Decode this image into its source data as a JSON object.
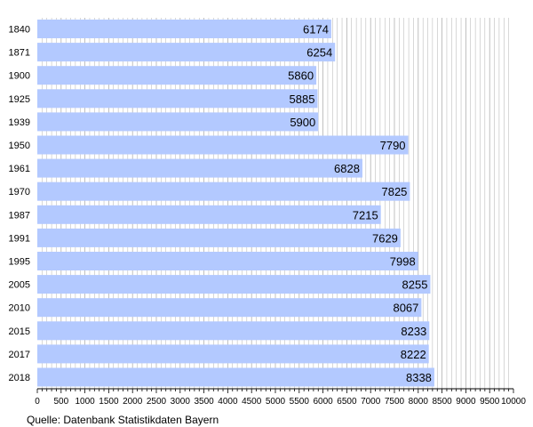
{
  "chart_data": {
    "type": "bar",
    "orientation": "horizontal",
    "categories": [
      "1840",
      "1871",
      "1900",
      "1925",
      "1939",
      "1950",
      "1961",
      "1970",
      "1987",
      "1991",
      "1995",
      "2005",
      "2010",
      "2015",
      "2017",
      "2018"
    ],
    "values": [
      6174,
      6254,
      5860,
      5885,
      5900,
      7790,
      6828,
      7825,
      7215,
      7629,
      7998,
      8255,
      8067,
      8233,
      8222,
      8338
    ],
    "xlim": [
      0,
      10000
    ],
    "x_ticks": [
      0,
      500,
      1000,
      1500,
      2000,
      2500,
      3000,
      3500,
      4000,
      4500,
      5000,
      5500,
      6000,
      6500,
      7000,
      7500,
      8000,
      8500,
      9000,
      9500,
      10000
    ],
    "grid": true,
    "bar_color": "#b3c9ff",
    "grid_color": "#b0b0b0",
    "value_labels": true
  },
  "source": "Quelle: Datenbank Statistikdaten Bayern"
}
